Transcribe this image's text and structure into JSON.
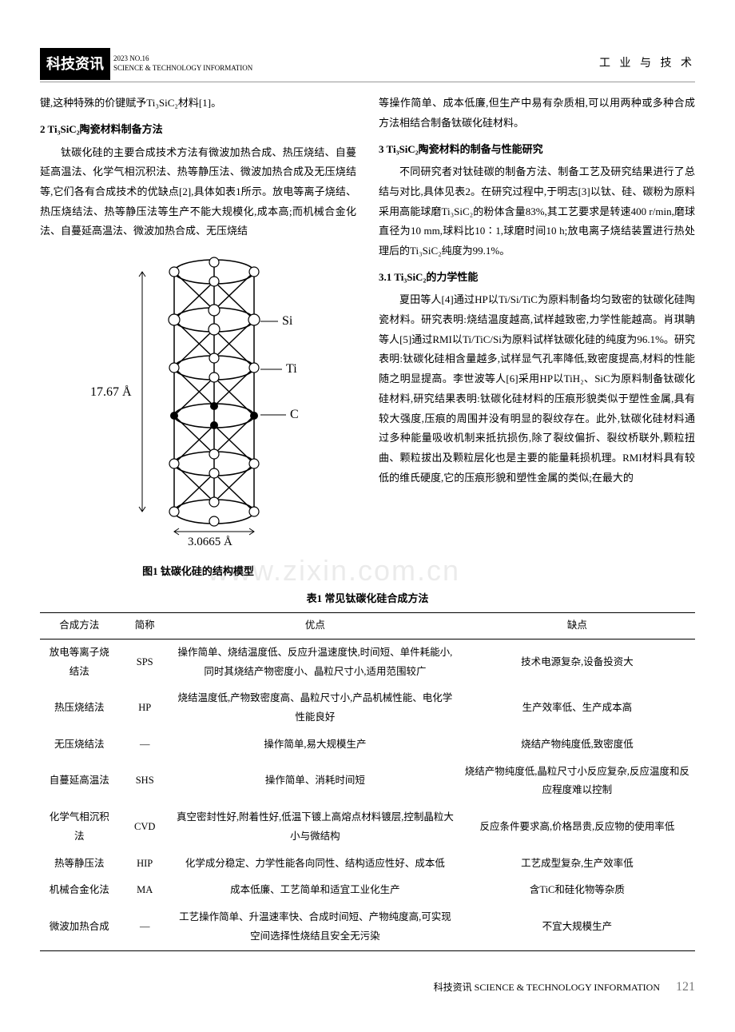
{
  "header": {
    "journal_title": "科技资讯",
    "issue_line1": "2023  NO.16",
    "issue_line2": "SCIENCE & TECHNOLOGY INFORMATION",
    "category": "工 业 与 技 术"
  },
  "left_column": {
    "p1": "键,这种特殊的价键赋予Ti₃SiC₂材料[1]。",
    "h1": "2  Ti₃SiC₂陶瓷材料制备方法",
    "p2": "钛碳化硅的主要合成技术方法有微波加热合成、热压烧结、自蔓延高温法、化学气相沉积法、热等静压法、微波加热合成及无压烧结等,它们各有合成技术的优缺点[2],具体如表1所示。放电等离子烧结、热压烧结法、热等静压法等生产不能大规模化,成本高;而机械合金化法、自蔓延高温法、微波加热合成、无压烧结"
  },
  "figure": {
    "labels": {
      "si": "Si",
      "ti": "Ti",
      "c": "C",
      "height": "17.67 Å",
      "width": "3.0665 Å"
    },
    "caption": "图1  钛碳化硅的结构模型",
    "stroke": "#000000",
    "stroke_width": 1.5
  },
  "right_column": {
    "p1": "等操作简单、成本低廉,但生产中易有杂质相,可以用两种或多种合成方法相结合制备钛碳化硅材料。",
    "h1": "3  Ti₃SiC₂陶瓷材料的制备与性能研究",
    "p2": "不同研究者对钛硅碳的制备方法、制备工艺及研究结果进行了总结与对比,具体见表2。在研究过程中,于明志[3]以钛、硅、碳粉为原料采用高能球磨Ti₃SiC₂的粉体含量83%,其工艺要求是转速400 r/min,磨球直径为10 mm,球料比10∶1,球磨时间10 h;放电离子烧结装置进行热处理后的Ti₃SiC₂纯度为99.1%。",
    "h2": "3.1  Ti₃SiC₂的力学性能",
    "p3": "夏田等人[4]通过HP以Ti/Si/TiC为原料制备均匀致密的钛碳化硅陶瓷材料。研究表明:烧结温度越高,试样越致密,力学性能越高。肖琪聃等人[5]通过RMI以Ti/TiC/Si为原料试样钛碳化硅的纯度为96.1%。研究表明:钛碳化硅相含量越多,试样显气孔率降低,致密度提高,材料的性能随之明显提高。李世波等人[6]采用HP以TiH₂、SiC为原料制备钛碳化硅材料,研究结果表明:钛碳化硅材料的压痕形貌类似于塑性金属,具有较大强度,压痕的周围并没有明显的裂纹存在。此外,钛碳化硅材料通过多种能量吸收机制来抵抗损伤,除了裂纹偏折、裂纹桥联外,颗粒扭曲、颗粒拔出及颗粒层化也是主要的能量耗损机理。RMI材料具有较低的维氏硬度,它的压痕形貌和塑性金属的类似;在最大的"
  },
  "table": {
    "title": "表1  常见钛碳化硅合成方法",
    "columns": [
      "合成方法",
      "简称",
      "优点",
      "缺点"
    ],
    "column_widths": [
      "12%",
      "8%",
      "44%",
      "36%"
    ],
    "rows": [
      [
        "放电等离子烧结法",
        "SPS",
        "操作简单、烧结温度低、反应升温速度快,时间短、单件耗能小,同时其烧结产物密度小、晶粒尺寸小,适用范围较广",
        "技术电源复杂,设备投资大"
      ],
      [
        "热压烧结法",
        "HP",
        "烧结温度低,产物致密度高、晶粒尺寸小,产品机械性能、电化学性能良好",
        "生产效率低、生产成本高"
      ],
      [
        "无压烧结法",
        "—",
        "操作简单,易大规模生产",
        "烧结产物纯度低,致密度低"
      ],
      [
        "自蔓延高温法",
        "SHS",
        "操作简单、消耗时间短",
        "烧结产物纯度低,晶粒尺寸小反应复杂,反应温度和反应程度难以控制"
      ],
      [
        "化学气相沉积法",
        "CVD",
        "真空密封性好,附着性好,低温下镀上高熔点材料镀层,控制晶粒大小与微结构",
        "反应条件要求高,价格昂贵,反应物的使用率低"
      ],
      [
        "热等静压法",
        "HIP",
        "化学成分稳定、力学性能各向同性、结构适应性好、成本低",
        "工艺成型复杂,生产效率低"
      ],
      [
        "机械合金化法",
        "MA",
        "成本低廉、工艺简单和适宜工业化生产",
        "含TiC和硅化物等杂质"
      ],
      [
        "微波加热合成",
        "—",
        "工艺操作简单、升温速率快、合成时间短、产物纯度高,可实现空间选择性烧结且安全无污染",
        "不宜大规模生产"
      ]
    ]
  },
  "footer": {
    "journal": "科技资讯  SCIENCE & TECHNOLOGY INFORMATION",
    "page": "121"
  },
  "watermark": "www.zixin.com.cn"
}
